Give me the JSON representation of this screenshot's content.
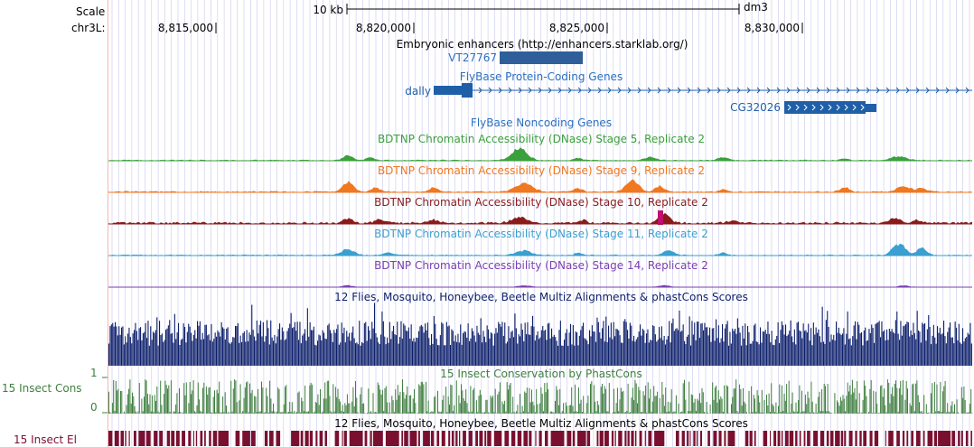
{
  "left_labels": {
    "scale": "Scale",
    "chrom": "chr3L:",
    "cons_track": "15 Insect Cons",
    "cons_top": "1",
    "cons_bottom": "0",
    "el_track": "15 Insect El"
  },
  "ruler": {
    "scale_bar_label": "10 kb",
    "assembly": "dm3",
    "positions": [
      "8,815,000",
      "8,820,000",
      "8,825,000",
      "8,830,000"
    ]
  },
  "tracks": {
    "enhancers_title": "Embryonic enhancers (http://enhancers.starklab.org/)",
    "enhancer_feature": "VT27767",
    "protein_coding_title": "FlyBase Protein-Coding Genes",
    "gene_dally": "dally",
    "gene_cg32026": "CG32026",
    "noncoding_title": "FlyBase Noncoding Genes",
    "dnase_stage5": "BDTNP Chromatin Accessibility (DNase) Stage 5, Replicate 2",
    "dnase_stage9": "BDTNP Chromatin Accessibility (DNase) Stage 9, Replicate 2",
    "dnase_stage10": "BDTNP Chromatin Accessibility (DNase) Stage 10, Replicate 2",
    "dnase_stage11": "BDTNP Chromatin Accessibility (DNase) Stage 11, Replicate 2",
    "dnase_stage14": "BDTNP Chromatin Accessibility (DNase) Stage 14, Replicate 2",
    "multiz_title": "12 Flies, Mosquito, Honeybee, Beetle Multiz Alignments & phastCons Scores",
    "phastcons_title": "15 Insect Conservation by PhastCons",
    "multiz_title_2": "12 Flies, Mosquito, Honeybee, Beetle Multiz Alignments & phastCons Scores"
  },
  "colors": {
    "gene_blue": "#1f5fa8",
    "gene_label_blue": "#2a6fc0",
    "enhancer_bar": "#2f5f9a",
    "stage5": "#3ba03b",
    "stage9": "#f07820",
    "stage10": "#8b1a1a",
    "stage11": "#3aa0d0",
    "stage14": "#7a3fb0",
    "multiz": "#0c1f6b",
    "phastcons": "#3f7f3f",
    "elements": "#7a1030",
    "grid": "#c8c8ec"
  }
}
